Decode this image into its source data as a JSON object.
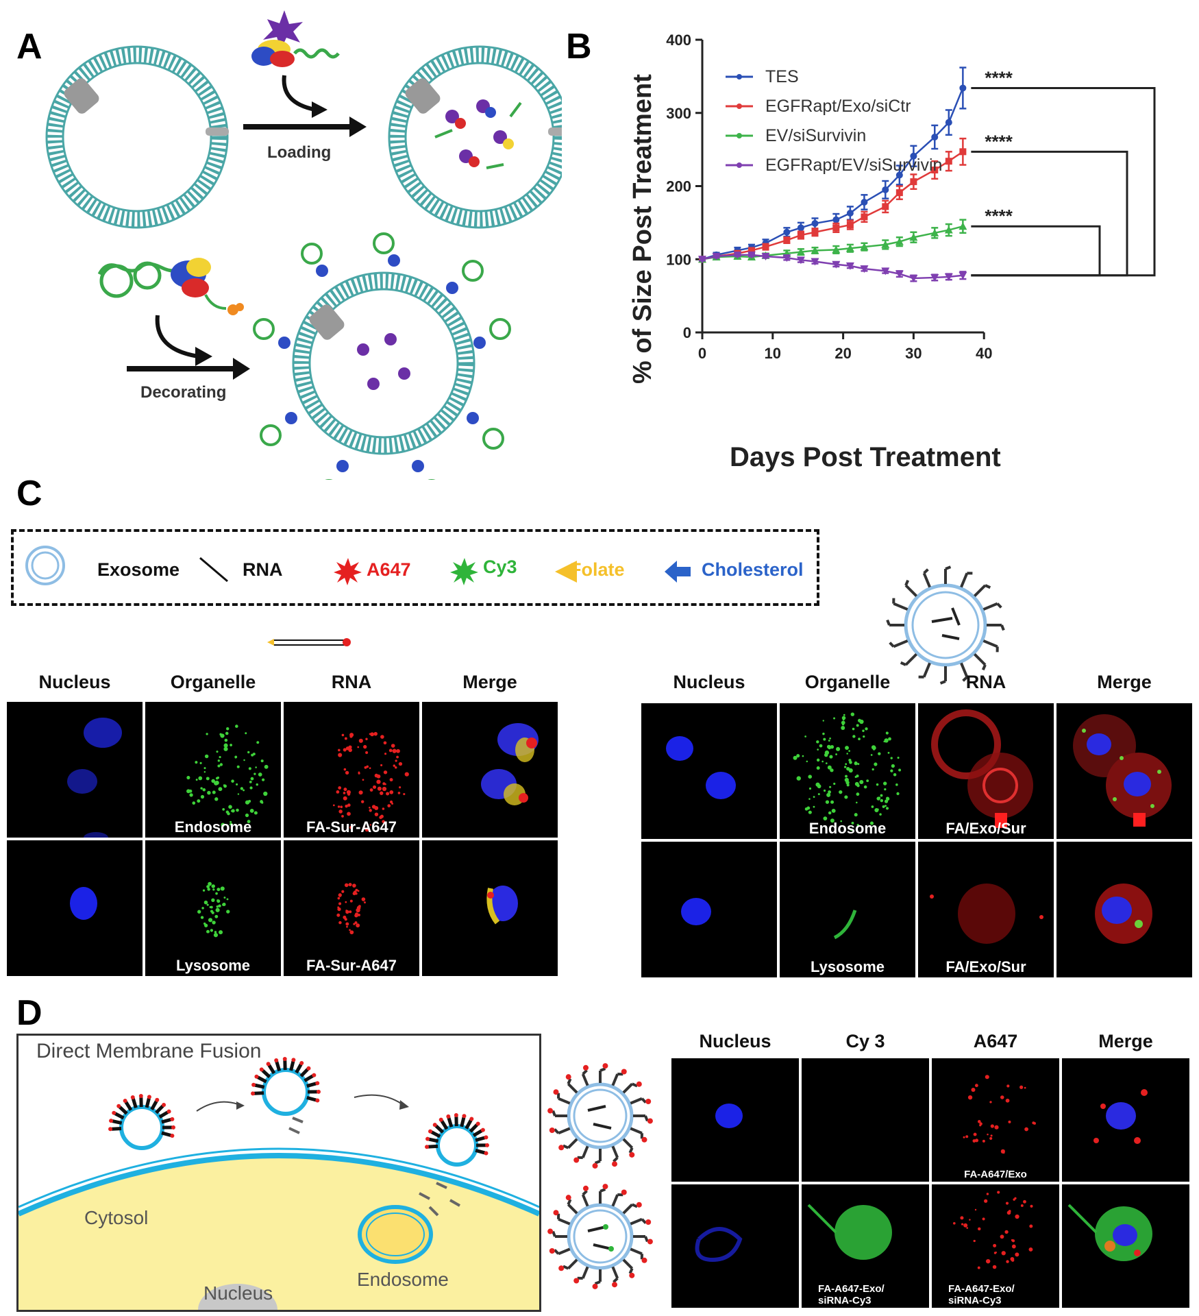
{
  "panel_letters": {
    "a": "A",
    "b": "B",
    "c": "C",
    "d": "D"
  },
  "panel_a": {
    "loading_label": "Loading",
    "decorating_label": "Decorating"
  },
  "chart_data": {
    "type": "line",
    "xlabel": "Days Post Treatment",
    "ylabel": "% of Size Post Treatment",
    "xlim": [
      0,
      40
    ],
    "ylim": [
      0,
      400
    ],
    "x_ticks": [
      "0",
      "10",
      "20",
      "30",
      "40"
    ],
    "y_ticks": [
      "0",
      "100",
      "200",
      "300",
      "400"
    ],
    "legend_position": "top-left",
    "series": [
      {
        "name": "TES",
        "color": "#2a4fb5",
        "marker": "circle",
        "x": [
          0,
          2,
          5,
          7,
          9,
          12,
          14,
          16,
          19,
          21,
          23,
          26,
          28,
          30,
          33,
          35,
          37
        ],
        "y": [
          100,
          106,
          112,
          116,
          122,
          137,
          143,
          149,
          154,
          163,
          178,
          195,
          215,
          241,
          267,
          287,
          334
        ],
        "err": [
          3,
          3,
          4,
          4,
          5,
          6,
          7,
          7,
          8,
          9,
          10,
          12,
          13,
          14,
          16,
          17,
          28
        ]
      },
      {
        "name": "EGFRapt/Exo/siCtr",
        "color": "#e03a3a",
        "marker": "square",
        "x": [
          0,
          2,
          5,
          7,
          9,
          12,
          14,
          16,
          19,
          21,
          23,
          26,
          28,
          30,
          33,
          35,
          37
        ],
        "y": [
          100,
          104,
          108,
          112,
          117,
          126,
          133,
          137,
          143,
          147,
          158,
          172,
          191,
          206,
          222,
          234,
          247
        ],
        "err": [
          2,
          3,
          3,
          3,
          4,
          4,
          5,
          5,
          6,
          6,
          7,
          8,
          9,
          10,
          12,
          13,
          18
        ]
      },
      {
        "name": "EV/siSurvivin",
        "color": "#3db34a",
        "marker": "triangle-up",
        "x": [
          0,
          2,
          5,
          7,
          9,
          12,
          14,
          16,
          19,
          21,
          23,
          26,
          28,
          30,
          33,
          35,
          37
        ],
        "y": [
          100,
          103,
          104,
          103,
          105,
          108,
          110,
          112,
          113,
          115,
          117,
          120,
          124,
          130,
          136,
          140,
          145
        ],
        "err": [
          2,
          2,
          3,
          3,
          3,
          4,
          4,
          4,
          5,
          5,
          5,
          6,
          6,
          7,
          7,
          8,
          9
        ]
      },
      {
        "name": "EGFRapt/EV/siSurvivin",
        "color": "#7f3fb0",
        "marker": "triangle-down",
        "x": [
          0,
          2,
          5,
          7,
          9,
          12,
          14,
          16,
          19,
          21,
          23,
          26,
          28,
          30,
          33,
          35,
          37
        ],
        "y": [
          100,
          104,
          106,
          106,
          104,
          102,
          99,
          97,
          93,
          91,
          87,
          84,
          80,
          74,
          75,
          76,
          78
        ],
        "err": [
          2,
          2,
          2,
          2,
          2,
          3,
          3,
          3,
          3,
          3,
          3,
          3,
          4,
          4,
          4,
          4,
          5
        ]
      }
    ],
    "annotations": [
      "****",
      "****",
      "****"
    ]
  },
  "legend_c": {
    "items": [
      {
        "label": "Exosome",
        "color": "#6fa6d6"
      },
      {
        "label": "RNA",
        "color": "#111111"
      },
      {
        "label": "A647",
        "color": "#e52020"
      },
      {
        "label": "Cy3",
        "color": "#2fb43a"
      },
      {
        "label": "Folate",
        "color": "#f5c02a"
      },
      {
        "label": "Cholesterol",
        "color": "#2b63c9"
      }
    ]
  },
  "panel_c": {
    "left": {
      "headers": [
        "Nucleus",
        "Organelle",
        "RNA",
        "Merge"
      ],
      "row1_labels": [
        "Endosome",
        "FA-Sur-A647"
      ],
      "row2_labels": [
        "Lysosome",
        "FA-Sur-A647"
      ]
    },
    "right": {
      "headers": [
        "Nucleus",
        "Organelle",
        "RNA",
        "Merge"
      ],
      "row1_labels": [
        "Endosome",
        "FA/Exo/Sur"
      ],
      "row2_labels": [
        "Lysosome",
        "FA/Exo/Sur"
      ]
    }
  },
  "panel_d": {
    "title": "Direct Membrane Fusion",
    "cytosol_label": "Cytosol",
    "endosome_label": "Endosome",
    "nucleus_label": "Nucleus",
    "headers": [
      "Nucleus",
      "Cy 3",
      "A647",
      "Merge"
    ],
    "row1_label": "FA-A647/Exo",
    "row2_label_line1": "FA-A647-Exo/",
    "row2_label_line2": "siRNA-Cy3"
  }
}
